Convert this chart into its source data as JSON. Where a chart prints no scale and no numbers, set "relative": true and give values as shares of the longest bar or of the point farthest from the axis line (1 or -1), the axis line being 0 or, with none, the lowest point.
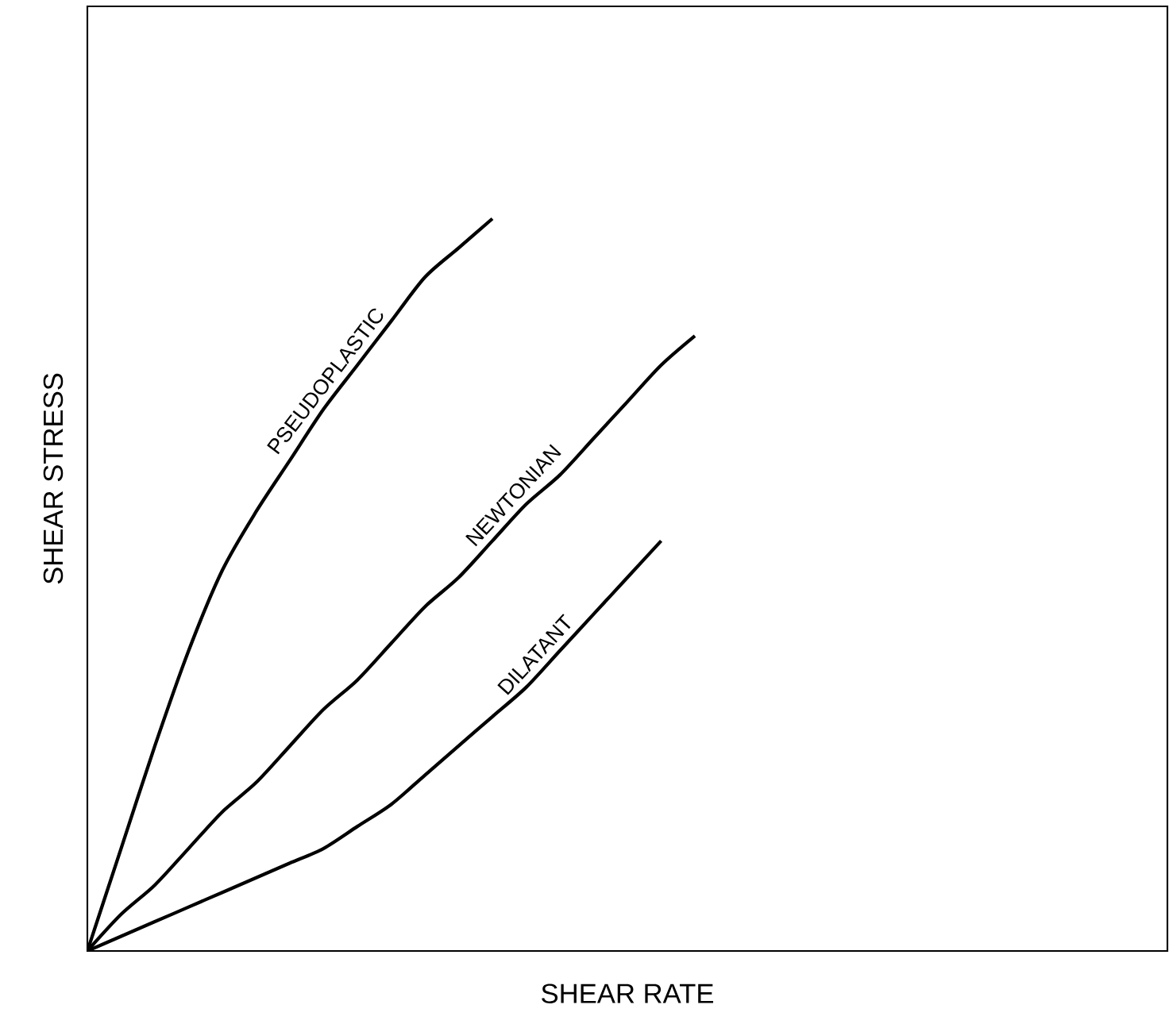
{
  "chart_data": {
    "type": "line",
    "relative": true,
    "xlabel": "SHEAR RATE",
    "ylabel": "SHEAR STRESS",
    "categories": [
      null,
      null,
      null,
      null,
      null,
      null,
      null,
      null,
      null,
      null,
      null,
      null,
      null,
      null,
      null,
      null,
      null,
      null,
      null,
      null,
      null,
      null,
      null,
      null,
      null,
      null,
      null,
      null,
      null,
      null,
      null,
      null,
      null
    ],
    "series": [
      {
        "name": "PSEUDOPLASTIC",
        "color": "#000000",
        "values": [
          0,
          0.14,
          0.28,
          0.41,
          0.52,
          0.6,
          0.67,
          0.74,
          0.8,
          0.86,
          0.92,
          0.96,
          1.0,
          null,
          null,
          null,
          null,
          null,
          null,
          null,
          null,
          null,
          null,
          null,
          null,
          null,
          null,
          null,
          null,
          null,
          null,
          null,
          null
        ]
      },
      {
        "name": "NEWTONIAN",
        "color": "#000000",
        "values": [
          0,
          0.05,
          0.09,
          0.14,
          0.19,
          0.23,
          0.28,
          0.33,
          0.37,
          0.42,
          0.47,
          0.51,
          0.56,
          0.61,
          0.65,
          0.7,
          0.75,
          0.8,
          0.84,
          null,
          null,
          null,
          null,
          null,
          null,
          null,
          null,
          null,
          null,
          null,
          null,
          null,
          null
        ]
      },
      {
        "name": "DILATANT",
        "color": "#000000",
        "values": [
          0,
          0.02,
          0.04,
          0.06,
          0.08,
          0.1,
          0.12,
          0.14,
          0.17,
          0.2,
          0.24,
          0.28,
          0.32,
          0.36,
          0.41,
          0.46,
          0.51,
          0.56,
          null,
          null,
          null,
          null,
          null,
          null,
          null,
          null,
          null,
          null,
          null,
          null,
          null,
          null,
          null
        ]
      }
    ]
  }
}
